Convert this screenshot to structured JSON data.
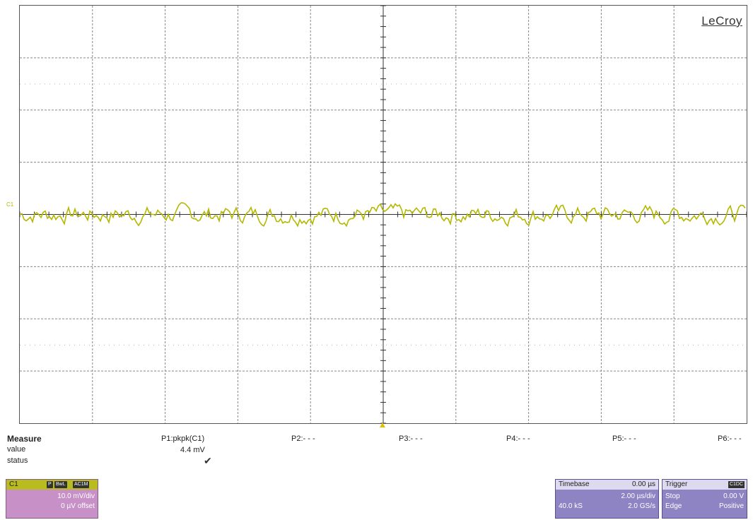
{
  "brand": "LeCroy",
  "channel_marker": "C1",
  "colors": {
    "trace": "#b5b800",
    "channel_box": "#c791c7",
    "timebase_box": "#8e84c4",
    "grid": "#888888"
  },
  "measure": {
    "title": "Measure",
    "row_labels": {
      "value": "value",
      "status": "status"
    },
    "params": [
      {
        "label": "P1:pkpk(C1)",
        "value": "4.4 mV",
        "status": "ok"
      },
      {
        "label": "P2:- - -",
        "value": "",
        "status": ""
      },
      {
        "label": "P3:- - -",
        "value": "",
        "status": ""
      },
      {
        "label": "P4:- - -",
        "value": "",
        "status": ""
      },
      {
        "label": "P5:- - -",
        "value": "",
        "status": ""
      },
      {
        "label": "P6:- - -",
        "value": "",
        "status": ""
      }
    ],
    "status_mark": "✔"
  },
  "channel": {
    "name": "C1",
    "badges": [
      "P",
      "BwL",
      "AC1M"
    ],
    "vdiv": "10.0 mV/div",
    "offset": "0 µV offset"
  },
  "timebase": {
    "title": "Timebase",
    "delay": "0.00 µs",
    "time_per_div": "2.00 µs/div",
    "samples": "40.0 kS",
    "sample_rate": "2.0 GS/s"
  },
  "trigger": {
    "title": "Trigger",
    "source_badge": "C1DC",
    "mode": "Stop",
    "level": "0.00 V",
    "type": "Edge",
    "slope": "Positive"
  },
  "scope": {
    "h_divisions": 10,
    "v_divisions": 8,
    "volts_per_div_mV": 10.0,
    "time_per_div_us": 2.0,
    "trace_pkpk_mV": 4.4
  }
}
